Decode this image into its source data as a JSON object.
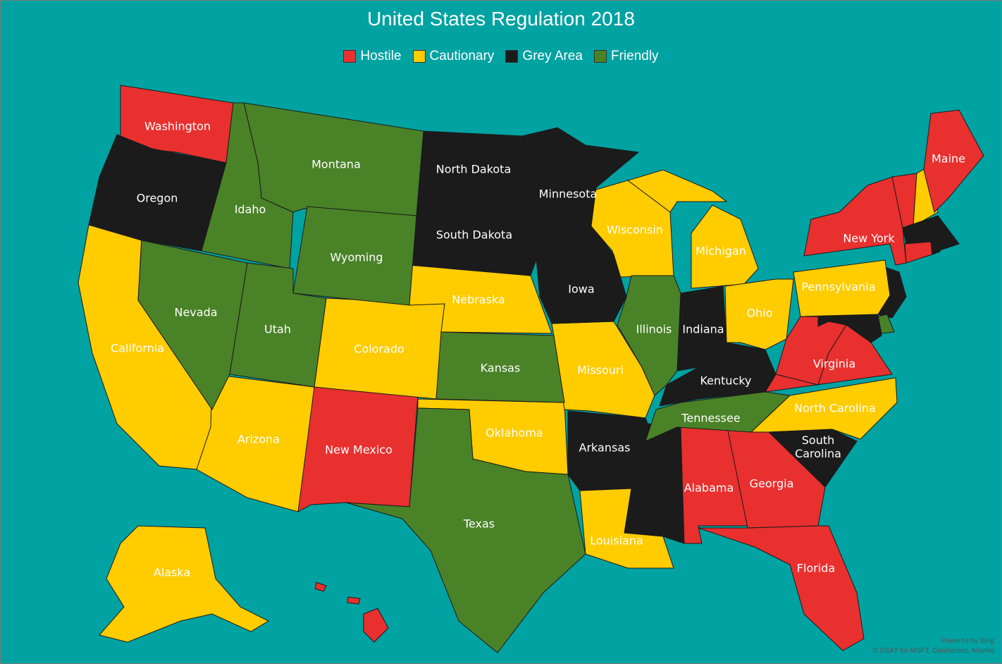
{
  "title": "United States Regulation 2018",
  "legend": [
    {
      "name": "Hostile",
      "color": "#e8302f",
      "states": [
        "Washington",
        "Maine",
        "New York",
        "Virginia",
        "New Mexico",
        "Alabama",
        "Georgia",
        "Florida"
      ]
    },
    {
      "name": "Cautionary",
      "color": "#ffcc00",
      "states": [
        "California",
        "Arizona",
        "Colorado",
        "Nebraska",
        "Oklahoma",
        "Missouri",
        "Louisiana",
        "Wisconsin",
        "Michigan",
        "Ohio",
        "Pennsylvania",
        "North Carolina",
        "Alaska"
      ]
    },
    {
      "name": "Grey Area",
      "color": "#1b1b1b",
      "states": [
        "Oregon",
        "North Dakota",
        "South Dakota",
        "Minnesota",
        "Iowa",
        "Indiana",
        "Kentucky",
        "Arkansas",
        "South Carolina"
      ]
    },
    {
      "name": "Friendly",
      "color": "#4a8228",
      "states": [
        "Montana",
        "Idaho",
        "Wyoming",
        "Nevada",
        "Utah",
        "Kansas",
        "Texas",
        "Illinois",
        "Tennessee"
      ]
    }
  ],
  "attribution": [
    "Powered by Bing",
    "© DSAT for MSFT, GeoNames, Navteq"
  ]
}
